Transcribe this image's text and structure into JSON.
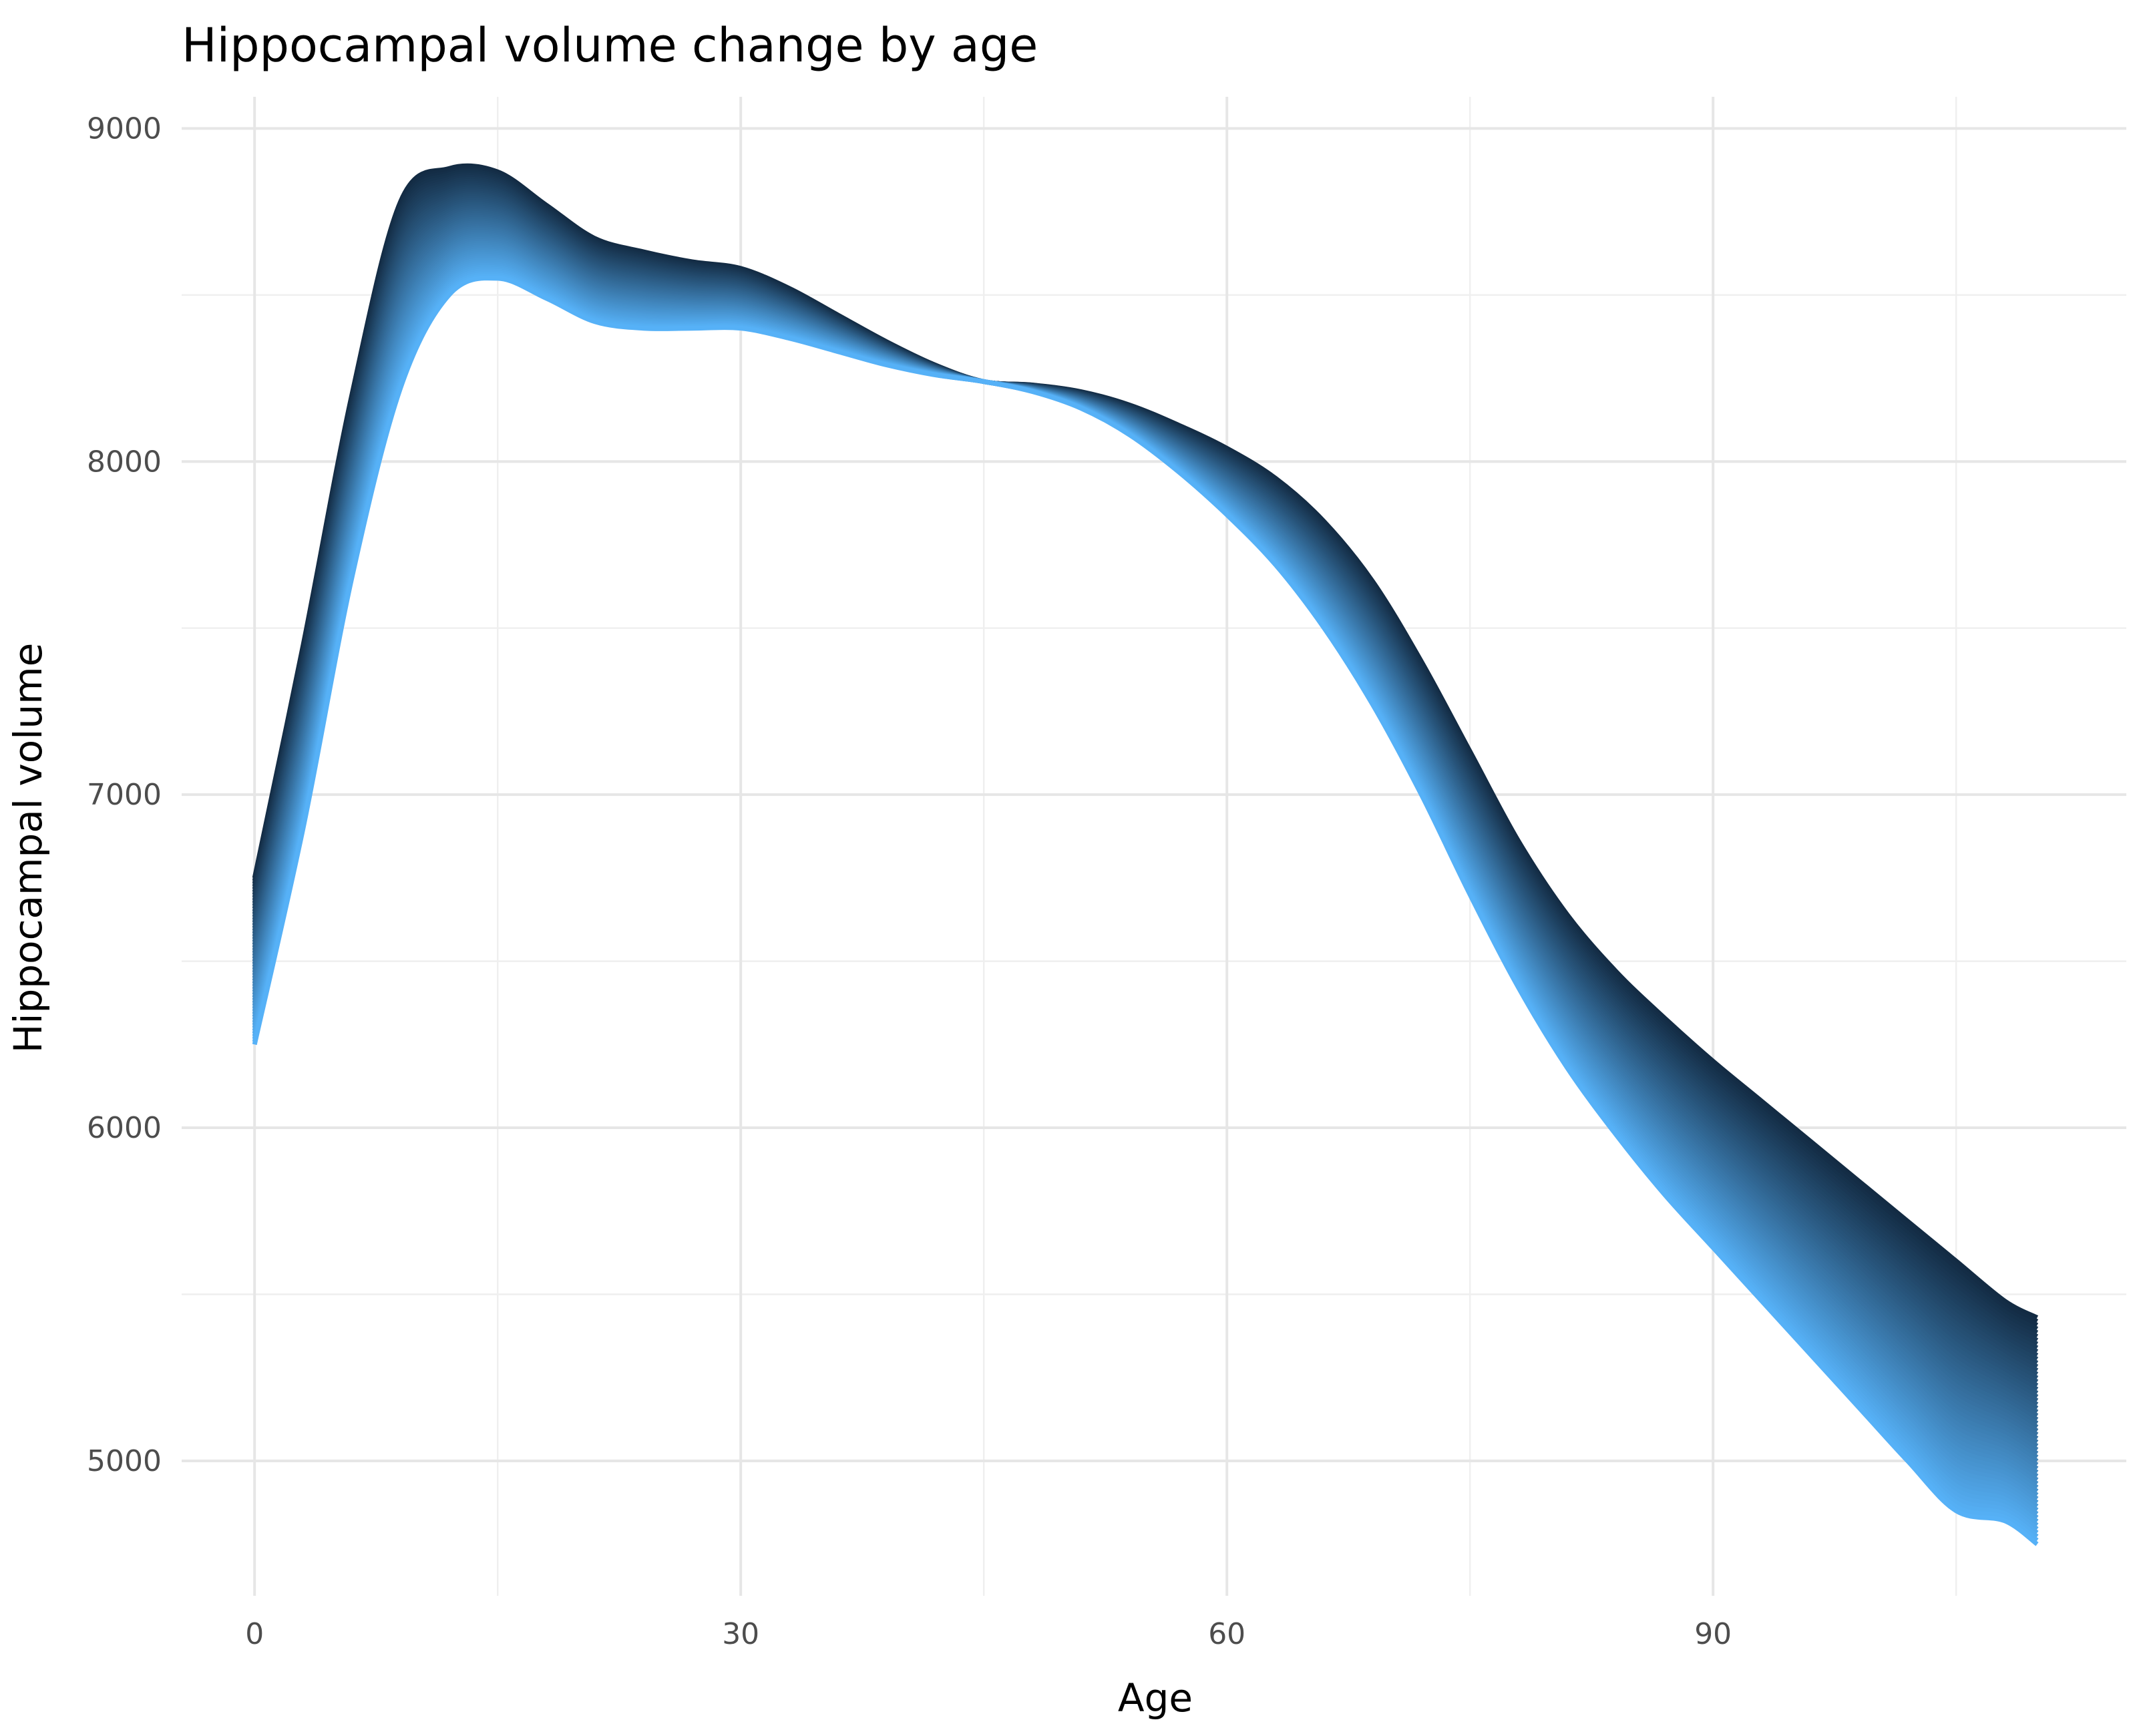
{
  "chart_data": {
    "type": "area",
    "title": "Hippocampal volume change by age",
    "xlabel": "Age",
    "ylabel": "Hippocampal volume",
    "xlim": [
      -4.5,
      115.5
    ],
    "ylim": [
      4595,
      9095
    ],
    "x_ticks": [
      0,
      30,
      60,
      90
    ],
    "y_ticks": [
      5000,
      6000,
      7000,
      8000,
      9000
    ],
    "grid": true,
    "legend": "none",
    "gradient_colors": [
      "#132b43",
      "#56b1f7"
    ],
    "band": {
      "x": [
        0,
        3,
        6,
        9,
        12,
        15,
        18,
        21,
        24,
        27,
        30,
        33,
        36,
        39,
        42,
        45,
        48,
        51,
        54,
        57,
        60,
        63,
        66,
        69,
        72,
        75,
        78,
        81,
        84,
        87,
        90,
        93,
        96,
        99,
        102,
        105,
        108,
        110
      ],
      "upper": [
        6750,
        7450,
        8200,
        8780,
        8880,
        8870,
        8770,
        8670,
        8630,
        8600,
        8580,
        8520,
        8440,
        8360,
        8290,
        8240,
        8230,
        8210,
        8170,
        8110,
        8040,
        7950,
        7820,
        7640,
        7400,
        7130,
        6860,
        6640,
        6470,
        6330,
        6200,
        6080,
        5960,
        5840,
        5720,
        5600,
        5480,
        5430
      ],
      "lower": [
        6250,
        6900,
        7650,
        8220,
        8500,
        8550,
        8490,
        8420,
        8400,
        8400,
        8400,
        8370,
        8330,
        8290,
        8260,
        8240,
        8210,
        8160,
        8080,
        7970,
        7840,
        7690,
        7500,
        7270,
        7000,
        6700,
        6420,
        6180,
        5980,
        5800,
        5640,
        5480,
        5320,
        5160,
        5000,
        4850,
        4820,
        4750
      ]
    }
  }
}
